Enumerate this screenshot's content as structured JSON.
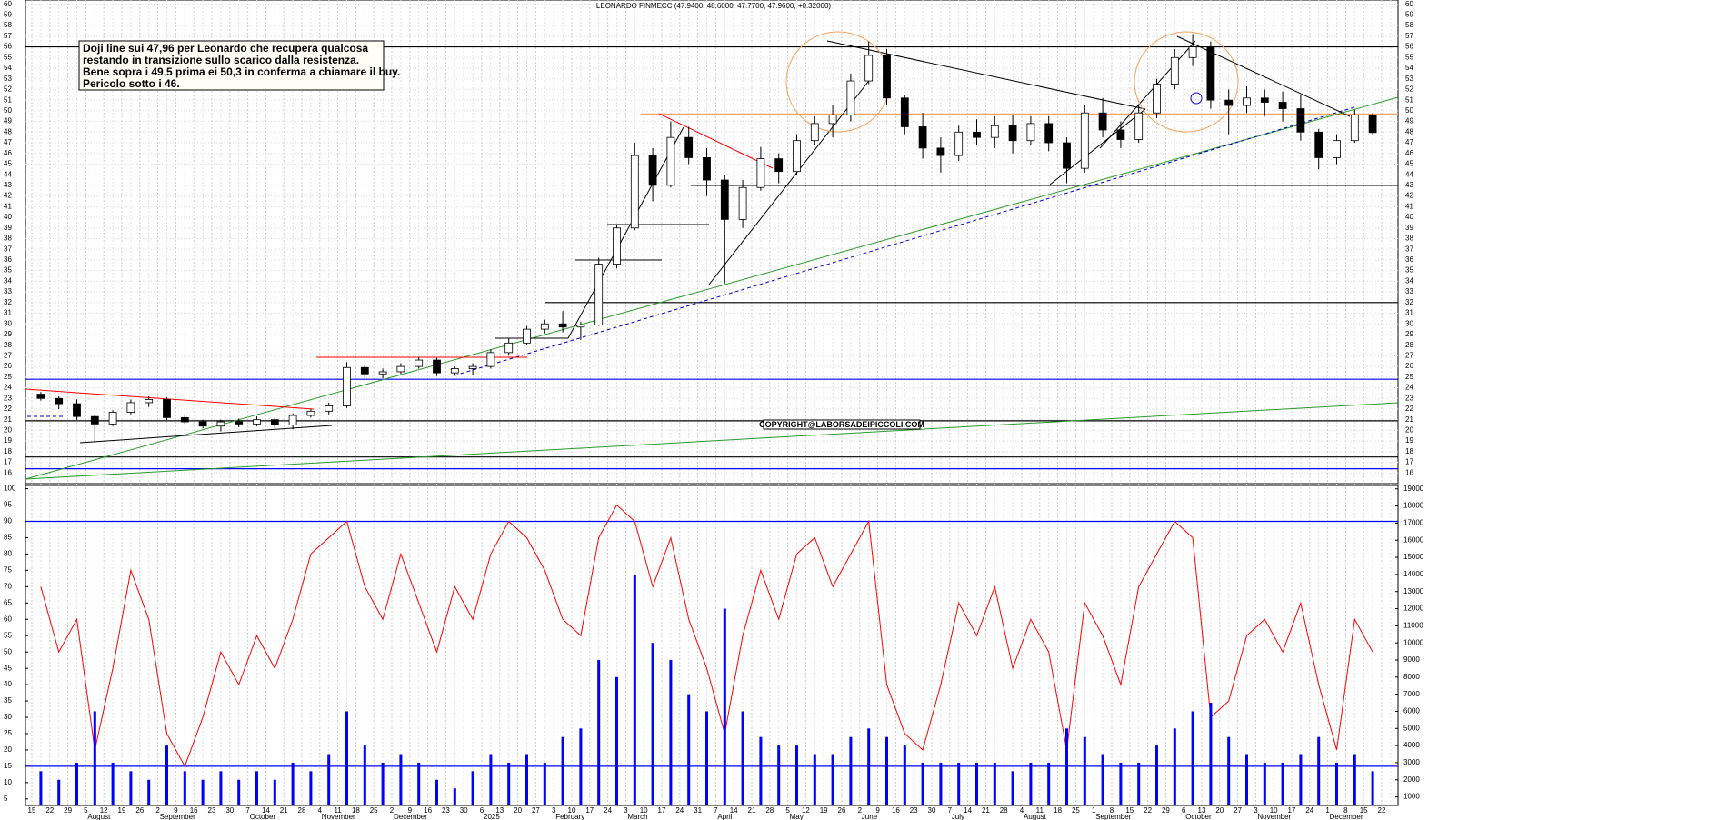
{
  "chart_data": [
    {
      "type": "candlestick",
      "title": "LEONARDO FINMECC (47.9400, 48.6000, 47.7700, 47.9600, +0.32000)",
      "annotation": [
        "Doji line sui 47,96 per Leonardo che recupera qualcosa",
        "restando in transizione sullo scarico dalla resistenza.",
        "Bene sopra i 49,5 prima ei 50,3 in conferma a chiamare il buy.",
        "Pericolo sotto i 46."
      ],
      "copyright": "COPYRIGHT@LABORSADEIPICCOLI.COM",
      "categories": [
        15,
        22,
        29,
        5,
        12,
        19,
        26,
        2,
        9,
        16,
        23,
        30,
        7,
        14,
        21,
        28,
        4,
        11,
        18,
        25,
        2,
        9,
        16,
        23,
        30,
        6,
        13,
        20,
        27,
        3,
        10,
        17,
        24,
        3,
        10,
        17,
        24,
        31,
        7,
        14,
        21,
        28,
        5,
        12,
        19,
        26,
        2,
        9,
        16,
        23,
        30,
        7,
        14,
        21,
        28,
        4,
        11,
        18,
        25,
        1,
        8,
        15,
        22,
        29,
        6,
        13,
        20,
        27,
        3,
        10,
        17,
        24,
        1,
        8,
        15,
        22
      ],
      "months": [
        null,
        null,
        null,
        "August",
        null,
        null,
        null,
        "September",
        null,
        null,
        null,
        null,
        "October",
        null,
        null,
        null,
        "November",
        null,
        null,
        null,
        "December",
        null,
        null,
        null,
        null,
        "2025",
        null,
        null,
        null,
        "February",
        null,
        null,
        null,
        "March",
        null,
        null,
        null,
        null,
        "April",
        null,
        null,
        null,
        "May",
        null,
        null,
        null,
        "June",
        null,
        null,
        null,
        null,
        "July",
        null,
        null,
        null,
        "August",
        null,
        null,
        null,
        "September",
        null,
        null,
        null,
        null,
        "October",
        null,
        null,
        null,
        "November",
        null,
        null,
        null,
        "December",
        null,
        null,
        null
      ],
      "open": [
        23.4,
        23.0,
        22.5,
        21.3,
        20.6,
        21.7,
        22.6,
        22.9,
        21.2,
        20.8,
        20.4,
        20.8,
        20.6,
        21.0,
        20.5,
        21.4,
        21.8,
        22.3,
        25.9,
        25.3,
        25.5,
        26.0,
        26.6,
        25.4,
        25.8,
        26.0,
        27.3,
        28.2,
        29.5,
        30.0,
        29.7,
        29.9,
        35.6,
        39.0,
        45.8,
        43.0,
        47.5,
        45.6,
        43.5,
        39.8,
        42.8,
        45.5,
        44.3,
        47.2,
        48.8,
        49.6,
        52.8,
        55.2,
        51.2,
        48.5,
        46.5,
        45.8,
        48.0,
        47.5,
        48.6,
        47.2,
        48.8,
        47.0,
        44.6,
        49.8,
        48.2,
        47.3,
        49.8,
        52.5,
        55.0,
        56.0,
        51.0,
        50.5,
        51.2,
        50.8,
        50.2,
        48.0,
        45.6,
        47.2,
        49.6,
        null
      ],
      "high": [
        23.6,
        23.2,
        22.9,
        21.5,
        21.9,
        22.9,
        23.2,
        23.1,
        21.4,
        21.0,
        21.0,
        21.1,
        21.3,
        21.2,
        21.6,
        22.0,
        22.6,
        26.4,
        26.1,
        25.8,
        26.3,
        26.9,
        26.8,
        26.0,
        26.3,
        27.6,
        28.6,
        29.8,
        30.4,
        31.2,
        30.2,
        36.2,
        39.3,
        47.0,
        46.5,
        49.0,
        48.5,
        46.5,
        44.0,
        43.5,
        46.6,
        46.0,
        47.8,
        49.5,
        50.5,
        53.5,
        56.5,
        55.8,
        51.5,
        49.8,
        47.5,
        48.6,
        49.2,
        49.5,
        49.6,
        49.5,
        49.5,
        47.5,
        50.5,
        51.2,
        49.0,
        50.5,
        53.0,
        55.8,
        57.2,
        56.5,
        52.0,
        52.3,
        52.0,
        51.8,
        51.5,
        48.3,
        47.8,
        50.1,
        49.8,
        null
      ],
      "low": [
        22.8,
        22.0,
        21.0,
        19.0,
        20.4,
        21.5,
        22.2,
        21.0,
        20.6,
        20.2,
        19.9,
        20.3,
        20.4,
        20.2,
        20.1,
        21.2,
        21.5,
        22.1,
        25.0,
        24.9,
        25.3,
        25.8,
        25.1,
        25.2,
        25.2,
        25.8,
        27.0,
        28.0,
        29.1,
        29.2,
        28.5,
        29.8,
        35.2,
        38.8,
        41.5,
        42.8,
        45.0,
        42.0,
        33.8,
        39.0,
        42.5,
        43.2,
        44.0,
        46.8,
        47.5,
        49.0,
        52.5,
        50.5,
        47.8,
        45.5,
        44.2,
        45.3,
        46.8,
        46.5,
        46.0,
        46.8,
        46.2,
        43.2,
        44.2,
        47.5,
        46.5,
        47.0,
        49.3,
        52.0,
        54.2,
        50.2,
        47.8,
        49.8,
        49.5,
        49.0,
        47.2,
        44.5,
        45.0,
        47.0,
        47.7,
        null
      ],
      "close": [
        23.0,
        22.5,
        21.3,
        20.6,
        21.7,
        22.6,
        22.9,
        21.2,
        20.8,
        20.4,
        20.8,
        20.6,
        21.0,
        20.5,
        21.4,
        21.8,
        22.3,
        25.9,
        25.3,
        25.5,
        26.0,
        26.6,
        25.4,
        25.8,
        26.0,
        27.3,
        28.2,
        29.5,
        30.0,
        29.7,
        29.9,
        35.6,
        39.0,
        45.8,
        43.0,
        47.5,
        45.6,
        43.5,
        39.8,
        42.8,
        45.5,
        44.3,
        47.2,
        48.8,
        49.6,
        52.8,
        55.2,
        51.2,
        48.5,
        46.5,
        45.8,
        48.0,
        47.5,
        48.6,
        47.2,
        48.8,
        47.0,
        44.6,
        49.8,
        48.2,
        47.3,
        49.8,
        52.5,
        55.0,
        56.0,
        51.0,
        50.5,
        51.2,
        50.8,
        50.2,
        48.0,
        45.6,
        47.2,
        49.6,
        47.96,
        null
      ],
      "up_color": "#ffffff",
      "down_color": "#000000",
      "ylim": [
        15,
        60.4
      ],
      "yticks": [
        16,
        17,
        18,
        19,
        20,
        21,
        22,
        23,
        24,
        25,
        26,
        27,
        28,
        29,
        30,
        31,
        32,
        33,
        34,
        35,
        36,
        37,
        38,
        39,
        40,
        41,
        42,
        43,
        44,
        45,
        46,
        47,
        48,
        49,
        50,
        51,
        52,
        53,
        54,
        55,
        56,
        57,
        58,
        59,
        60
      ],
      "levels": [
        {
          "value": 56,
          "color": "#000000"
        },
        {
          "value": 49.7,
          "color": "#f4a460"
        },
        {
          "value": 43,
          "color": "#000000"
        },
        {
          "value": 32,
          "color": "#000000"
        },
        {
          "value": 24.8,
          "color": "#0000ff"
        },
        {
          "value": 20.9,
          "color": "#000000"
        },
        {
          "value": 17.5,
          "color": "#000000"
        },
        {
          "value": 16.4,
          "color": "#0000ff"
        }
      ],
      "grid": true
    },
    {
      "type": "oscillator-volume",
      "series": [
        {
          "name": "oscillator",
          "color": "#ff0000",
          "values": [
            70,
            50,
            60,
            20,
            45,
            75,
            60,
            25,
            15,
            30,
            50,
            40,
            55,
            45,
            60,
            80,
            85,
            90,
            70,
            60,
            80,
            65,
            50,
            70,
            60,
            80,
            90,
            85,
            75,
            60,
            55,
            85,
            95,
            90,
            70,
            85,
            60,
            45,
            25,
            55,
            75,
            60,
            80,
            85,
            70,
            80,
            90,
            40,
            25,
            20,
            40,
            65,
            55,
            70,
            45,
            60,
            50,
            20,
            65,
            55,
            40,
            70,
            80,
            90,
            85,
            30,
            35,
            55,
            60,
            50,
            65,
            40,
            20,
            60,
            50,
            null
          ]
        },
        {
          "name": "volume",
          "color": "#0000ff",
          "axis": "y2",
          "values": [
            2500,
            2000,
            3000,
            6000,
            3000,
            2500,
            2000,
            4000,
            2500,
            2000,
            2500,
            2000,
            2500,
            2000,
            3000,
            2500,
            3500,
            6000,
            4000,
            3000,
            3500,
            3000,
            2000,
            1500,
            2500,
            3500,
            3000,
            3500,
            3000,
            4500,
            5000,
            9000,
            8000,
            14000,
            10000,
            9000,
            7000,
            6000,
            12000,
            6000,
            4500,
            4000,
            4000,
            3500,
            3500,
            4500,
            5000,
            4500,
            4000,
            3000,
            3000,
            3000,
            3000,
            3000,
            2500,
            3000,
            3000,
            5000,
            4500,
            3500,
            3000,
            3000,
            4000,
            5000,
            6000,
            6500,
            4500,
            3500,
            3000,
            3000,
            3500,
            4500,
            3000,
            3500,
            2500,
            null
          ]
        }
      ],
      "ylim": [
        3,
        101
      ],
      "yticks": [
        5,
        10,
        15,
        20,
        25,
        30,
        35,
        40,
        45,
        50,
        55,
        60,
        65,
        70,
        75,
        80,
        85,
        90,
        95,
        100
      ],
      "y2lim": [
        500,
        19200
      ],
      "y2ticks": [
        1000,
        2000,
        3000,
        4000,
        5000,
        6000,
        7000,
        8000,
        9000,
        10000,
        11000,
        12000,
        13000,
        14000,
        15000,
        16000,
        17000,
        18000,
        19000
      ],
      "levels": [
        {
          "value": 90,
          "color": "#0000ff"
        },
        {
          "value": 15,
          "color": "#0000ff"
        }
      ]
    }
  ]
}
